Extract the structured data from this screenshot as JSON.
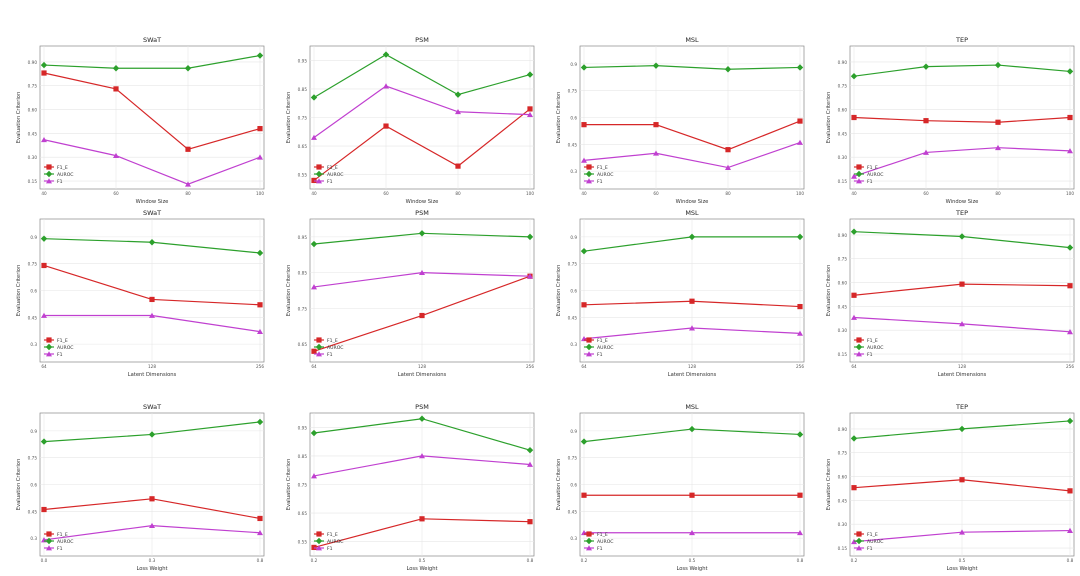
{
  "legend_labels": [
    "F1_E",
    "AUROC",
    "F1"
  ],
  "series_colors": {
    "F1_E": "#d62728",
    "AUROC": "#2ca02c",
    "F1": "#c040d0"
  },
  "ylabel": "Evaluation Criterion",
  "chart_data": [
    {
      "type": "line",
      "title": "SWaT",
      "xlabel": "Window Size",
      "x": [
        "40",
        "60",
        "80",
        "100"
      ],
      "ylim": [
        0.1,
        1.0
      ],
      "yticks": [
        0.15,
        0.3,
        0.45,
        0.6,
        0.75,
        0.9
      ],
      "y_tick_labels": [
        "0.15",
        "0.30",
        "0.45",
        "0.60",
        "0.75",
        "0.90"
      ],
      "legend": "bottom-left",
      "grid": true,
      "series": [
        {
          "name": "F1_E",
          "values": [
            0.83,
            0.73,
            0.35,
            0.48
          ]
        },
        {
          "name": "AUROC",
          "values": [
            0.88,
            0.86,
            0.86,
            0.94
          ]
        },
        {
          "name": "F1",
          "values": [
            0.41,
            0.31,
            0.13,
            0.3
          ]
        }
      ]
    },
    {
      "type": "line",
      "title": "PSM",
      "xlabel": "Window Size",
      "x": [
        "40",
        "60",
        "80",
        "100"
      ],
      "ylim": [
        0.5,
        1.0
      ],
      "yticks": [
        0.55,
        0.65,
        0.75,
        0.85,
        0.95
      ],
      "y_tick_labels": [
        "0.55",
        "0.65",
        "0.75",
        "0.85",
        "0.95"
      ],
      "legend": "bottom-left",
      "grid": true,
      "series": [
        {
          "name": "F1_E",
          "values": [
            0.53,
            0.72,
            0.58,
            0.78
          ]
        },
        {
          "name": "AUROC",
          "values": [
            0.82,
            0.97,
            0.83,
            0.9
          ]
        },
        {
          "name": "F1",
          "values": [
            0.68,
            0.86,
            0.77,
            0.76
          ]
        }
      ]
    },
    {
      "type": "line",
      "title": "MSL",
      "xlabel": "Window Size",
      "x": [
        "40",
        "60",
        "80",
        "100"
      ],
      "ylim": [
        0.2,
        1.0
      ],
      "yticks": [
        0.3,
        0.45,
        0.6,
        0.75,
        0.9
      ],
      "y_tick_labels": [
        "0.3",
        "0.45",
        "0.6",
        "0.75",
        "0.9"
      ],
      "legend": "bottom-left",
      "grid": true,
      "series": [
        {
          "name": "F1_E",
          "values": [
            0.56,
            0.56,
            0.42,
            0.58
          ]
        },
        {
          "name": "AUROC",
          "values": [
            0.88,
            0.89,
            0.87,
            0.88
          ]
        },
        {
          "name": "F1",
          "values": [
            0.36,
            0.4,
            0.32,
            0.46
          ]
        }
      ]
    },
    {
      "type": "line",
      "title": "TEP",
      "xlabel": "Window Size",
      "x": [
        "40",
        "60",
        "80",
        "100"
      ],
      "ylim": [
        0.1,
        1.0
      ],
      "yticks": [
        0.15,
        0.3,
        0.45,
        0.6,
        0.75,
        0.9
      ],
      "y_tick_labels": [
        "0.15",
        "0.30",
        "0.45",
        "0.60",
        "0.75",
        "0.90"
      ],
      "legend": "bottom-left",
      "grid": true,
      "series": [
        {
          "name": "F1_E",
          "values": [
            0.55,
            0.53,
            0.52,
            0.55
          ]
        },
        {
          "name": "AUROC",
          "values": [
            0.81,
            0.87,
            0.88,
            0.84
          ]
        },
        {
          "name": "F1",
          "values": [
            0.18,
            0.33,
            0.36,
            0.34
          ]
        }
      ]
    },
    {
      "type": "line",
      "title": "SWaT",
      "xlabel": "Latent Dimensions",
      "x": [
        "64",
        "128",
        "256"
      ],
      "ylim": [
        0.2,
        1.0
      ],
      "yticks": [
        0.3,
        0.45,
        0.6,
        0.75,
        0.9
      ],
      "y_tick_labels": [
        "0.3",
        "0.45",
        "0.6",
        "0.75",
        "0.9"
      ],
      "legend": "bottom-left",
      "grid": true,
      "series": [
        {
          "name": "F1_E",
          "values": [
            0.74,
            0.55,
            0.52
          ]
        },
        {
          "name": "AUROC",
          "values": [
            0.89,
            0.87,
            0.81
          ]
        },
        {
          "name": "F1",
          "values": [
            0.46,
            0.46,
            0.37
          ]
        }
      ]
    },
    {
      "type": "line",
      "title": "PSM",
      "xlabel": "Latent Dimensions",
      "x": [
        "64",
        "128",
        "256"
      ],
      "ylim": [
        0.6,
        1.0
      ],
      "yticks": [
        0.65,
        0.75,
        0.85,
        0.95
      ],
      "y_tick_labels": [
        "0.65",
        "0.75",
        "0.85",
        "0.95"
      ],
      "legend": "bottom-left",
      "grid": true,
      "series": [
        {
          "name": "F1_E",
          "values": [
            0.63,
            0.73,
            0.84
          ]
        },
        {
          "name": "AUROC",
          "values": [
            0.93,
            0.96,
            0.95
          ]
        },
        {
          "name": "F1",
          "values": [
            0.81,
            0.85,
            0.84
          ]
        }
      ]
    },
    {
      "type": "line",
      "title": "MSL",
      "xlabel": "Latent Dimensions",
      "x": [
        "64",
        "128",
        "256"
      ],
      "ylim": [
        0.2,
        1.0
      ],
      "yticks": [
        0.3,
        0.45,
        0.6,
        0.75,
        0.9
      ],
      "y_tick_labels": [
        "0.3",
        "0.45",
        "0.6",
        "0.75",
        "0.9"
      ],
      "legend": "bottom-left",
      "grid": true,
      "series": [
        {
          "name": "F1_E",
          "values": [
            0.52,
            0.54,
            0.51
          ]
        },
        {
          "name": "AUROC",
          "values": [
            0.82,
            0.9,
            0.9
          ]
        },
        {
          "name": "F1",
          "values": [
            0.33,
            0.39,
            0.36
          ]
        }
      ]
    },
    {
      "type": "line",
      "title": "TEP",
      "xlabel": "Latent Dimensions",
      "x": [
        "64",
        "128",
        "256"
      ],
      "ylim": [
        0.1,
        1.0
      ],
      "yticks": [
        0.15,
        0.3,
        0.45,
        0.6,
        0.75,
        0.9
      ],
      "y_tick_labels": [
        "0.15",
        "0.30",
        "0.45",
        "0.60",
        "0.75",
        "0.90"
      ],
      "legend": "bottom-left",
      "grid": true,
      "series": [
        {
          "name": "F1_E",
          "values": [
            0.52,
            0.59,
            0.58
          ]
        },
        {
          "name": "AUROC",
          "values": [
            0.92,
            0.89,
            0.82
          ]
        },
        {
          "name": "F1",
          "values": [
            0.38,
            0.34,
            0.29
          ]
        }
      ]
    },
    {
      "type": "line",
      "title": "SWaT",
      "xlabel": "Loss Weight",
      "x": [
        "0.0",
        "0.3",
        "0.8"
      ],
      "ylim": [
        0.2,
        1.0
      ],
      "yticks": [
        0.3,
        0.45,
        0.6,
        0.75,
        0.9
      ],
      "y_tick_labels": [
        "0.3",
        "0.45",
        "0.6",
        "0.75",
        "0.9"
      ],
      "legend": "bottom-left",
      "grid": true,
      "series": [
        {
          "name": "F1_E",
          "values": [
            0.46,
            0.52,
            0.41
          ]
        },
        {
          "name": "AUROC",
          "values": [
            0.84,
            0.88,
            0.95
          ]
        },
        {
          "name": "F1",
          "values": [
            0.29,
            0.37,
            0.33
          ]
        }
      ]
    },
    {
      "type": "line",
      "title": "PSM",
      "xlabel": "Loss Weight",
      "x": [
        "0.2",
        "0.5",
        "0.8"
      ],
      "ylim": [
        0.5,
        1.0
      ],
      "yticks": [
        0.55,
        0.65,
        0.75,
        0.85,
        0.95
      ],
      "y_tick_labels": [
        "0.55",
        "0.65",
        "0.75",
        "0.85",
        "0.95"
      ],
      "legend": "bottom-left",
      "grid": true,
      "series": [
        {
          "name": "F1_E",
          "values": [
            0.53,
            0.63,
            0.62
          ]
        },
        {
          "name": "AUROC",
          "values": [
            0.93,
            0.98,
            0.87
          ]
        },
        {
          "name": "F1",
          "values": [
            0.78,
            0.85,
            0.82
          ]
        }
      ]
    },
    {
      "type": "line",
      "title": "MSL",
      "xlabel": "Loss Weight",
      "x": [
        "0.2",
        "0.5",
        "0.8"
      ],
      "ylim": [
        0.2,
        1.0
      ],
      "yticks": [
        0.3,
        0.45,
        0.6,
        0.75,
        0.9
      ],
      "y_tick_labels": [
        "0.3",
        "0.45",
        "0.6",
        "0.75",
        "0.9"
      ],
      "legend": "bottom-left",
      "grid": true,
      "series": [
        {
          "name": "F1_E",
          "values": [
            0.54,
            0.54,
            0.54
          ]
        },
        {
          "name": "AUROC",
          "values": [
            0.84,
            0.91,
            0.88
          ]
        },
        {
          "name": "F1",
          "values": [
            0.33,
            0.33,
            0.33
          ]
        }
      ]
    },
    {
      "type": "line",
      "title": "TEP",
      "xlabel": "Loss Weight",
      "x": [
        "0.2",
        "0.5",
        "0.8"
      ],
      "ylim": [
        0.1,
        1.0
      ],
      "yticks": [
        0.15,
        0.3,
        0.45,
        0.6,
        0.75,
        0.9
      ],
      "y_tick_labels": [
        "0.15",
        "0.30",
        "0.45",
        "0.60",
        "0.75",
        "0.90"
      ],
      "legend": "bottom-left",
      "grid": true,
      "series": [
        {
          "name": "F1_E",
          "values": [
            0.53,
            0.58,
            0.51
          ]
        },
        {
          "name": "AUROC",
          "values": [
            0.84,
            0.9,
            0.95
          ]
        },
        {
          "name": "F1",
          "values": [
            0.19,
            0.25,
            0.26
          ]
        }
      ]
    }
  ]
}
